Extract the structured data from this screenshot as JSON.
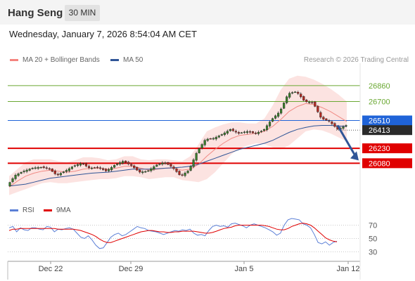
{
  "header": {
    "title": "Hang Seng",
    "timeframe": "30 MIN"
  },
  "timestamp": "Wednesday, January 7, 2026 8:54:04 AM CET",
  "legend": {
    "ma20": {
      "label": "MA 20 + Bollinger Bands",
      "color": "#f4847f"
    },
    "ma50": {
      "label": "MA 50",
      "color": "#2f5597"
    }
  },
  "credit": "Research © 2026 Trading Central",
  "rsi_legend": {
    "rsi": {
      "label": "RSI",
      "color": "#5b7fd6"
    },
    "ma9": {
      "label": "9MA",
      "color": "#e00000"
    }
  },
  "chart_data": [
    {
      "type": "candlestick",
      "title": "Hang Seng",
      "timeframe": "30 MIN",
      "y_range": [
        25800,
        27050
      ],
      "x_ticks": [
        "Dec 22",
        "Dec 29",
        "Jan 5",
        "Jan 12"
      ],
      "last_price": {
        "value": "26413",
        "color": "#2a2a2a"
      },
      "levels": [
        {
          "value": "26860",
          "kind": "resistance",
          "color": "#6aa832"
        },
        {
          "value": "26700",
          "kind": "resistance",
          "color": "#6aa832"
        },
        {
          "value": "26510",
          "kind": "pivot",
          "color": "#1f63d8"
        },
        {
          "value": "26230",
          "kind": "support",
          "color": "#e00000"
        },
        {
          "value": "26080",
          "kind": "support",
          "color": "#e00000"
        }
      ],
      "projection": {
        "direction": "down",
        "color": "#2f5597"
      },
      "ohlc_path": [
        25850,
        25960,
        26000,
        26030,
        26040,
        26030,
        25960,
        26000,
        26050,
        26080,
        26030,
        26040,
        26000,
        26060,
        26100,
        26060,
        25990,
        26000,
        26060,
        26090,
        26040,
        25950,
        26010,
        26200,
        26320,
        26330,
        26370,
        26420,
        26380,
        26400,
        26380,
        26410,
        26520,
        26600,
        26780,
        26800,
        26700,
        26690,
        26530,
        26500,
        26420,
        26460
      ],
      "series": [
        {
          "name": "MA 20 + Bollinger Bands",
          "ma": [
            25840,
            25900,
            25950,
            25980,
            26000,
            26010,
            26000,
            25990,
            26000,
            26020,
            26030,
            26030,
            26020,
            26030,
            26050,
            26050,
            26030,
            26010,
            26020,
            26030,
            26030,
            26010,
            26020,
            26070,
            26150,
            26220,
            26280,
            26330,
            26360,
            26370,
            26380,
            26400,
            26450,
            26520,
            26600,
            26650,
            26680,
            26670,
            26640,
            26600,
            26550,
            26500
          ],
          "upper": [
            25950,
            26020,
            26090,
            26120,
            26120,
            26120,
            26100,
            26090,
            26110,
            26140,
            26140,
            26130,
            26110,
            26120,
            26150,
            26150,
            26120,
            26110,
            26120,
            26120,
            26110,
            26100,
            26150,
            26270,
            26400,
            26440,
            26470,
            26490,
            26490,
            26480,
            26480,
            26530,
            26660,
            26820,
            26930,
            26960,
            26950,
            26920,
            26880,
            26830,
            26770,
            26700
          ],
          "lower": [
            25760,
            25790,
            25820,
            25850,
            25880,
            25890,
            25880,
            25880,
            25890,
            25900,
            25910,
            25920,
            25920,
            25930,
            25950,
            25950,
            25940,
            25920,
            25930,
            25940,
            25940,
            25910,
            25900,
            25890,
            25920,
            25990,
            26080,
            26170,
            26230,
            26260,
            26280,
            26270,
            26240,
            26220,
            26260,
            26330,
            26400,
            26420,
            26410,
            26380,
            26340,
            26300
          ]
        },
        {
          "name": "MA 50",
          "values": [
            25850,
            25860,
            25870,
            25890,
            25910,
            25930,
            25940,
            25950,
            25960,
            25970,
            25980,
            25985,
            25990,
            26000,
            26010,
            26020,
            26020,
            26020,
            26025,
            26030,
            26035,
            26040,
            26050,
            26070,
            26100,
            26130,
            26160,
            26190,
            26220,
            26240,
            26260,
            26280,
            26310,
            26350,
            26390,
            26420,
            26440,
            26455,
            26460,
            26460,
            26455,
            26450
          ]
        }
      ]
    },
    {
      "type": "line",
      "title": "RSI",
      "y_range": [
        20,
        80
      ],
      "y_ticks": [
        "70",
        "50",
        "30"
      ],
      "series": [
        {
          "name": "RSI",
          "values": [
            66,
            68,
            60,
            66,
            63,
            62,
            66,
            66,
            64,
            63,
            68,
            67,
            60,
            64,
            63,
            65,
            66,
            64,
            58,
            52,
            50,
            54,
            48,
            40,
            35,
            36,
            44,
            52,
            56,
            58,
            54,
            56,
            60,
            64,
            68,
            66,
            65,
            62,
            61,
            60,
            58,
            56,
            58,
            60,
            62,
            61,
            63,
            62,
            64,
            58,
            55,
            56,
            54,
            62,
            68,
            70,
            68,
            69,
            67,
            72,
            73,
            71,
            69,
            66,
            70,
            72,
            70,
            68,
            66,
            63,
            60,
            55,
            58,
            70,
            78,
            80,
            79,
            78,
            72,
            70,
            66,
            56,
            44,
            42,
            45,
            40,
            44,
            46
          ]
        },
        {
          "name": "9MA",
          "values": [
            62,
            64,
            64,
            65,
            65,
            65,
            65,
            65,
            65,
            65,
            65,
            65,
            65,
            64,
            64,
            64,
            64,
            64,
            63,
            62,
            60,
            58,
            56,
            53,
            49,
            46,
            44,
            44,
            46,
            48,
            50,
            52,
            54,
            56,
            58,
            60,
            61,
            62,
            62,
            61,
            60,
            60,
            59,
            59,
            60,
            60,
            61,
            61,
            61,
            61,
            60,
            59,
            58,
            58,
            59,
            61,
            63,
            65,
            66,
            67,
            69,
            70,
            70,
            70,
            70,
            70,
            70,
            70,
            69,
            68,
            66,
            64,
            63,
            63,
            65,
            68,
            70,
            72,
            73,
            72,
            70,
            66,
            61,
            56,
            51,
            48,
            46,
            45
          ]
        }
      ]
    }
  ]
}
